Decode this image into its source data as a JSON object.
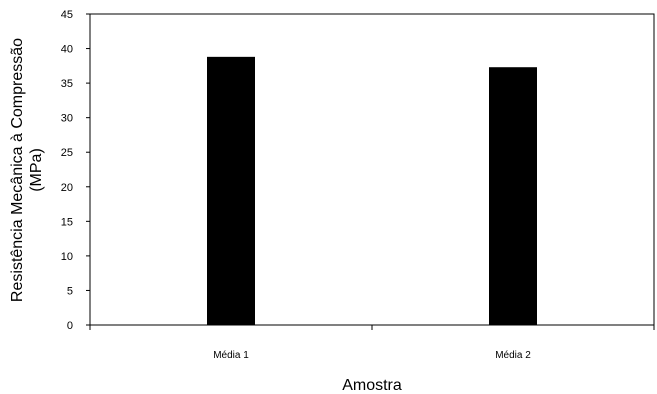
{
  "chart_data": {
    "type": "bar",
    "title": "",
    "categories": [
      "Média 1",
      "Média 2"
    ],
    "values": [
      38.8,
      37.3
    ],
    "xlabel": "Amostra",
    "ylabel_line1": "Resistência Mecânica à Compressão",
    "ylabel_line2": "(MPa)",
    "ylim": [
      0,
      45
    ],
    "yticks": [
      0,
      5,
      10,
      15,
      20,
      25,
      30,
      35,
      40,
      45
    ],
    "bar_color": "#000000",
    "grid": false,
    "legend": "none"
  }
}
